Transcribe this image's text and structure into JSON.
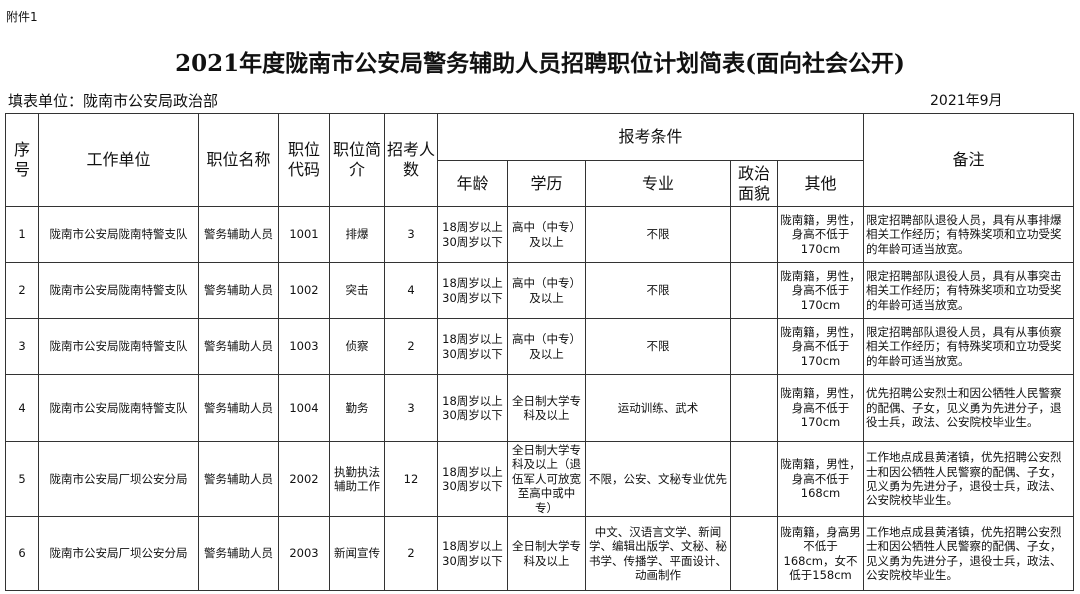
{
  "attachment": "附件1",
  "title": "2021年度陇南市公安局警务辅助人员招聘职位计划简表(面向社会公开)",
  "filler_unit": "填表单位：陇南市公安局政治部",
  "date": "2021年9月",
  "headers": {
    "no": "序号",
    "unit": "工作单位",
    "name": "职位名称",
    "code": "职位代码",
    "intro": "职位简介",
    "count": "招考人数",
    "conditions": "报考条件",
    "age": "年龄",
    "edu": "学历",
    "major": "专业",
    "political": "政治面貌",
    "other": "其他",
    "remarks": "备注"
  },
  "rows": [
    {
      "no": "1",
      "unit": "陇南市公安局陇南特警支队",
      "name": "警务辅助人员",
      "code": "1001",
      "intro": "排爆",
      "count": "3",
      "age": "18周岁以上30周岁以下",
      "edu": "高中（中专）及以上",
      "major": "不限",
      "political": "",
      "other": "陇南籍，男性，身高不低于170cm",
      "remarks": "限定招聘部队退役人员，具有从事排爆相关工作经历；有特殊奖项和立功受奖的年龄可适当放宽。"
    },
    {
      "no": "2",
      "unit": "陇南市公安局陇南特警支队",
      "name": "警务辅助人员",
      "code": "1002",
      "intro": "突击",
      "count": "4",
      "age": "18周岁以上30周岁以下",
      "edu": "高中（中专）及以上",
      "major": "不限",
      "political": "",
      "other": "陇南籍，男性，身高不低于170cm",
      "remarks": "限定招聘部队退役人员，具有从事突击相关工作经历；有特殊奖项和立功受奖的年龄可适当放宽。"
    },
    {
      "no": "3",
      "unit": "陇南市公安局陇南特警支队",
      "name": "警务辅助人员",
      "code": "1003",
      "intro": "侦察",
      "count": "2",
      "age": "18周岁以上30周岁以下",
      "edu": "高中（中专）及以上",
      "major": "不限",
      "political": "",
      "other": "陇南籍，男性，身高不低于170cm",
      "remarks": "限定招聘部队退役人员，具有从事侦察相关工作经历；有特殊奖项和立功受奖的年龄可适当放宽。"
    },
    {
      "no": "4",
      "unit": "陇南市公安局陇南特警支队",
      "name": "警务辅助人员",
      "code": "1004",
      "intro": "勤务",
      "count": "3",
      "age": "18周岁以上30周岁以下",
      "edu": "全日制大学专科及以上",
      "major": "运动训练、武术",
      "political": "",
      "other": "陇南籍，男性，身高不低于170cm",
      "remarks": "优先招聘公安烈士和因公牺牲人民警察的配偶、子女，见义勇为先进分子，退役士兵，政法、公安院校毕业生。"
    },
    {
      "no": "5",
      "unit": "陇南市公安局厂坝公安分局",
      "name": "警务辅助人员",
      "code": "2002",
      "intro": "执勤执法辅助工作",
      "count": "12",
      "age": "18周岁以上30周岁以下",
      "edu": "全日制大学专科及以上（退伍军人可放宽至高中或中专）",
      "major": "不限，公安、文秘专业优先",
      "political": "",
      "other": "陇南籍，男性，身高不低于168cm",
      "remarks": "工作地点成县黄渚镇，优先招聘公安烈士和因公牺牲人民警察的配偶、子女，见义勇为先进分子，退役士兵，政法、公安院校毕业生。"
    },
    {
      "no": "6",
      "unit": "陇南市公安局厂坝公安分局",
      "name": "警务辅助人员",
      "code": "2003",
      "intro": "新闻宣传",
      "count": "2",
      "age": "18周岁以上30周岁以下",
      "edu": "全日制大学专科及以上",
      "major": "中文、汉语言文学、新闻学、编辑出版学、文秘、秘书学、传播学、平面设计、动画制作",
      "political": "",
      "other": "陇南籍，身高男不低于168cm，女不低于158cm",
      "remarks": "工作地点成县黄渚镇，优先招聘公安烈士和因公牺牲人民警察的配偶、子女，见义勇为先进分子，退役士兵，政法、公安院校毕业生。"
    }
  ]
}
